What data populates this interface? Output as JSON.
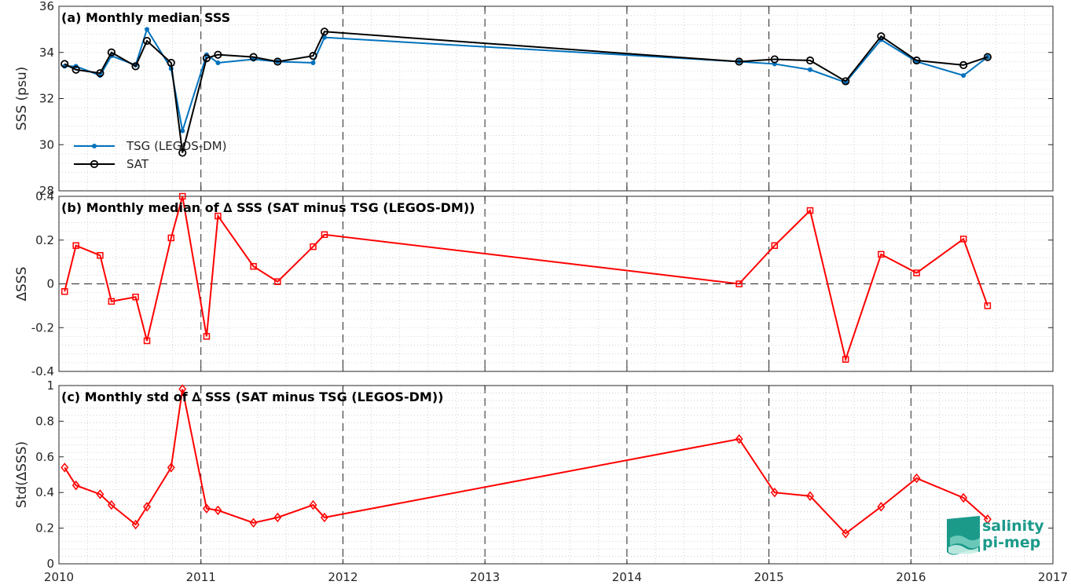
{
  "colors": {
    "tsg": "#0072BD",
    "sat": "#000000",
    "delta": "#FF0000",
    "logo": "#1b9a8a"
  },
  "logo": {
    "line1": "salinity",
    "line2": "pi-mep"
  },
  "x_axis": {
    "ticks": [
      "2010",
      "2011",
      "2012",
      "2013",
      "2014",
      "2015",
      "2016",
      "2017"
    ]
  },
  "chart_data": [
    {
      "type": "line",
      "title": "(a) Monthly median SSS",
      "ylabel": "SSS (psu)",
      "xlim": [
        2010,
        2017
      ],
      "ylim": [
        28,
        36
      ],
      "yticks": [
        "28",
        "30",
        "32",
        "34",
        "36"
      ],
      "grid": true,
      "legend_placement": "bottom-left",
      "x": [
        2010.04,
        2010.12,
        2010.29,
        2010.37,
        2010.54,
        2010.62,
        2010.79,
        2010.87,
        2011.04,
        2011.12,
        2011.37,
        2011.54,
        2011.79,
        2011.87,
        2014.79,
        2015.04,
        2015.29,
        2015.54,
        2015.79,
        2016.04,
        2016.37,
        2016.54
      ],
      "series": [
        {
          "name": "TSG (LEGOS-DM)",
          "color": "#0072BD",
          "marker": "dot",
          "values": [
            33.4,
            33.4,
            33.0,
            33.85,
            33.45,
            35.0,
            33.3,
            30.6,
            33.9,
            33.55,
            33.7,
            33.6,
            33.55,
            34.65,
            33.6,
            33.5,
            33.25,
            32.7,
            34.55,
            33.6,
            33.0,
            33.8
          ]
        },
        {
          "name": "SAT",
          "color": "#000000",
          "marker": "circle",
          "values": [
            33.5,
            33.25,
            33.1,
            34.0,
            33.4,
            34.5,
            33.55,
            29.65,
            33.75,
            33.9,
            33.8,
            33.6,
            33.85,
            34.9,
            33.6,
            33.7,
            33.65,
            32.75,
            34.7,
            33.65,
            33.45,
            33.8
          ]
        }
      ]
    },
    {
      "type": "line",
      "title": "(b) Monthly median of ∆ SSS (SAT minus TSG (LEGOS-DM))",
      "ylabel": "∆SSS",
      "xlim": [
        2010,
        2017
      ],
      "ylim": [
        -0.4,
        0.4
      ],
      "yticks": [
        "-0.4",
        "-0.2",
        "0",
        "0.2",
        "0.4"
      ],
      "grid": true,
      "x": [
        2010.04,
        2010.12,
        2010.29,
        2010.37,
        2010.54,
        2010.62,
        2010.79,
        2010.87,
        2011.04,
        2011.12,
        2011.37,
        2011.54,
        2011.79,
        2011.87,
        2014.79,
        2015.04,
        2015.29,
        2015.54,
        2015.79,
        2016.04,
        2016.37,
        2016.54
      ],
      "series": [
        {
          "color": "#FF0000",
          "marker": "square",
          "values": [
            -0.035,
            0.175,
            0.13,
            -0.08,
            -0.06,
            -0.26,
            0.21,
            0.4,
            -0.24,
            0.31,
            0.08,
            0.01,
            0.17,
            0.225,
            0.0,
            0.175,
            0.335,
            -0.345,
            0.135,
            0.05,
            0.205,
            -0.1
          ]
        }
      ]
    },
    {
      "type": "line",
      "title": "(c) Monthly std of ∆ SSS (SAT minus TSG (LEGOS-DM))",
      "ylabel": "Std(∆SSS)",
      "xlim": [
        2010,
        2017
      ],
      "ylim": [
        0,
        1
      ],
      "yticks": [
        "0",
        "0.2",
        "0.4",
        "0.6",
        "0.8",
        "1"
      ],
      "grid": true,
      "x": [
        2010.04,
        2010.12,
        2010.29,
        2010.37,
        2010.54,
        2010.62,
        2010.79,
        2010.87,
        2011.04,
        2011.12,
        2011.37,
        2011.54,
        2011.79,
        2011.87,
        2014.79,
        2015.04,
        2015.29,
        2015.54,
        2015.79,
        2016.04,
        2016.37,
        2016.54
      ],
      "series": [
        {
          "color": "#FF0000",
          "marker": "diamond",
          "values": [
            0.54,
            0.44,
            0.39,
            0.33,
            0.22,
            0.32,
            0.54,
            0.98,
            0.31,
            0.3,
            0.23,
            0.26,
            0.33,
            0.26,
            0.7,
            0.4,
            0.38,
            0.17,
            0.32,
            0.48,
            0.37,
            0.25
          ]
        }
      ]
    }
  ]
}
